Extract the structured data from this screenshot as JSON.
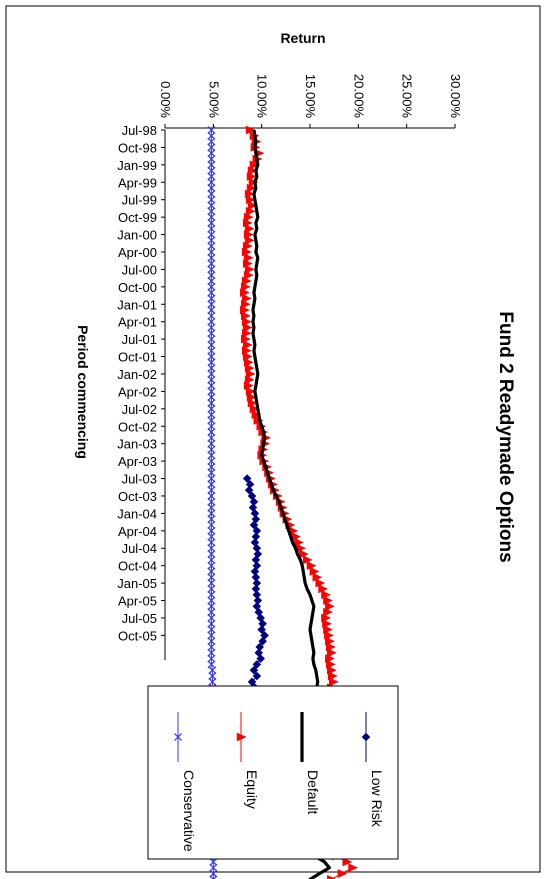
{
  "chart_data": {
    "type": "line",
    "title": "Fund 2 Readymade Options",
    "ylabel": "Return",
    "xlabel": "Period commencing",
    "ylim": [
      0,
      0.3
    ],
    "y_ticks": [
      "0.00%",
      "5.00%",
      "10.00%",
      "15.00%",
      "20.00%",
      "25.00%",
      "30.00%"
    ],
    "x_tick_labels": [
      "Jul-98",
      "Oct-98",
      "Jan-99",
      "Apr-99",
      "Jul-99",
      "Oct-99",
      "Jan-00",
      "Apr-00",
      "Jul-00",
      "Oct-00",
      "Jan-01",
      "Apr-01",
      "Jul-01",
      "Oct-01",
      "Jan-02",
      "Apr-02",
      "Jul-02",
      "Oct-02",
      "Jan-03",
      "Apr-03",
      "Jul-03",
      "Oct-03",
      "Jan-04",
      "Apr-04",
      "Jul-04",
      "Oct-04",
      "Jan-05",
      "Apr-05",
      "Jul-05",
      "Oct-05"
    ],
    "x_start": "Jul-98",
    "x_end": "Dec-05",
    "grid": false,
    "legend_position": "bottom",
    "series": [
      {
        "name": "Low Risk",
        "color": "#000080",
        "marker": "diamond",
        "start": "Jul-03",
        "values": [
          0.085,
          0.088,
          0.087,
          0.09,
          0.092,
          0.091,
          0.093,
          0.094,
          0.092,
          0.095,
          0.094,
          0.093,
          0.095,
          0.096,
          0.094,
          0.095,
          0.093,
          0.094,
          0.095,
          0.094,
          0.095,
          0.096,
          0.095,
          0.097,
          0.099,
          0.101,
          0.1,
          0.103,
          0.101,
          0.098,
          0.097,
          0.099,
          0.095,
          0.092,
          0.095,
          0.09,
          0.093,
          0.088,
          0.086,
          0.09,
          0.088,
          0.09,
          0.092,
          0.093,
          0.091,
          0.092
        ]
      },
      {
        "name": "Default",
        "color": "#000000",
        "marker": "none",
        "start": "Jul-98",
        "values": [
          0.092,
          0.093,
          0.094,
          0.093,
          0.094,
          0.095,
          0.096,
          0.094,
          0.095,
          0.093,
          0.094,
          0.092,
          0.093,
          0.094,
          0.095,
          0.096,
          0.094,
          0.095,
          0.093,
          0.094,
          0.095,
          0.094,
          0.096,
          0.095,
          0.094,
          0.095,
          0.094,
          0.093,
          0.092,
          0.093,
          0.092,
          0.091,
          0.092,
          0.091,
          0.092,
          0.091,
          0.092,
          0.093,
          0.092,
          0.093,
          0.094,
          0.095,
          0.096,
          0.095,
          0.094,
          0.093,
          0.094,
          0.095,
          0.096,
          0.097,
          0.098,
          0.1,
          0.102,
          0.103,
          0.102,
          0.101,
          0.1,
          0.102,
          0.104,
          0.106,
          0.108,
          0.11,
          0.112,
          0.115,
          0.118,
          0.12,
          0.122,
          0.124,
          0.126,
          0.128,
          0.13,
          0.132,
          0.135,
          0.137,
          0.14,
          0.142,
          0.143,
          0.144,
          0.145,
          0.147,
          0.15,
          0.152,
          0.154,
          0.153,
          0.152,
          0.151,
          0.15,
          0.151,
          0.152,
          0.153,
          0.154,
          0.153,
          0.154,
          0.156,
          0.157,
          0.158,
          0.157,
          0.156,
          0.155,
          0.157,
          0.158,
          0.16,
          0.161,
          0.159,
          0.158,
          0.157,
          0.156,
          0.158,
          0.16,
          0.162,
          0.16,
          0.158,
          0.155,
          0.153,
          0.156,
          0.16,
          0.165,
          0.17,
          0.175,
          0.177,
          0.17,
          0.16,
          0.15,
          0.143,
          0.147,
          0.155,
          0.165,
          0.17,
          0.16,
          0.15,
          0.145,
          0.15
        ]
      },
      {
        "name": "Equity",
        "color": "#ff0000",
        "marker": "triangle",
        "start": "Jul-98",
        "values": [
          0.088,
          0.092,
          0.094,
          0.093,
          0.097,
          0.095,
          0.092,
          0.09,
          0.089,
          0.091,
          0.089,
          0.087,
          0.088,
          0.09,
          0.088,
          0.086,
          0.085,
          0.087,
          0.086,
          0.087,
          0.085,
          0.084,
          0.086,
          0.085,
          0.087,
          0.086,
          0.084,
          0.083,
          0.082,
          0.084,
          0.083,
          0.082,
          0.083,
          0.084,
          0.085,
          0.084,
          0.083,
          0.085,
          0.084,
          0.085,
          0.086,
          0.087,
          0.088,
          0.087,
          0.086,
          0.088,
          0.089,
          0.09,
          0.092,
          0.094,
          0.096,
          0.099,
          0.101,
          0.104,
          0.103,
          0.101,
          0.1,
          0.102,
          0.105,
          0.107,
          0.109,
          0.111,
          0.113,
          0.116,
          0.119,
          0.121,
          0.123,
          0.126,
          0.129,
          0.132,
          0.135,
          0.138,
          0.14,
          0.143,
          0.147,
          0.151,
          0.154,
          0.157,
          0.16,
          0.163,
          0.166,
          0.168,
          0.17,
          0.168,
          0.166,
          0.167,
          0.168,
          0.169,
          0.17,
          0.171,
          0.172,
          0.17,
          0.171,
          0.172,
          0.173,
          0.174,
          0.172,
          0.171,
          0.17,
          0.172,
          0.174,
          0.176,
          0.178,
          0.175,
          0.173,
          0.171,
          0.17,
          0.172,
          0.175,
          0.178,
          0.176,
          0.173,
          0.171,
          0.169,
          0.172,
          0.177,
          0.183,
          0.19,
          0.198,
          0.205,
          0.195,
          0.183,
          0.172,
          0.165,
          0.168,
          0.177,
          0.188,
          0.194,
          0.183,
          0.172,
          0.165,
          0.17
        ]
      },
      {
        "name": "Conservative",
        "color": "#3333ff",
        "marker": "x",
        "start": "Jul-98",
        "values": [
          0.048,
          0.048,
          0.048,
          0.048,
          0.048,
          0.048,
          0.048,
          0.048,
          0.048,
          0.048,
          0.048,
          0.048,
          0.048,
          0.048,
          0.048,
          0.048,
          0.048,
          0.048,
          0.048,
          0.048,
          0.048,
          0.048,
          0.048,
          0.048,
          0.048,
          0.048,
          0.048,
          0.048,
          0.048,
          0.048,
          0.048,
          0.048,
          0.048,
          0.048,
          0.048,
          0.048,
          0.048,
          0.048,
          0.048,
          0.048,
          0.048,
          0.048,
          0.048,
          0.048,
          0.048,
          0.048,
          0.048,
          0.048,
          0.048,
          0.048,
          0.048,
          0.048,
          0.048,
          0.048,
          0.048,
          0.048,
          0.048,
          0.048,
          0.048,
          0.048,
          0.048,
          0.048,
          0.048,
          0.048,
          0.048,
          0.048,
          0.048,
          0.048,
          0.048,
          0.048,
          0.048,
          0.048,
          0.048,
          0.048,
          0.048,
          0.048,
          0.048,
          0.048,
          0.048,
          0.048,
          0.048,
          0.048,
          0.048,
          0.048,
          0.048,
          0.048,
          0.048,
          0.048,
          0.048,
          0.048,
          0.048,
          0.048,
          0.048,
          0.049,
          0.049,
          0.049,
          0.049,
          0.049,
          0.049,
          0.049,
          0.049,
          0.049,
          0.049,
          0.049,
          0.049,
          0.049,
          0.05,
          0.05,
          0.05,
          0.05,
          0.05,
          0.05,
          0.05,
          0.05,
          0.05,
          0.05,
          0.05,
          0.05,
          0.05,
          0.05,
          0.05,
          0.05,
          0.05,
          0.05,
          0.05,
          0.05,
          0.05,
          0.05,
          0.05,
          0.05,
          0.05,
          0.05
        ]
      }
    ]
  }
}
